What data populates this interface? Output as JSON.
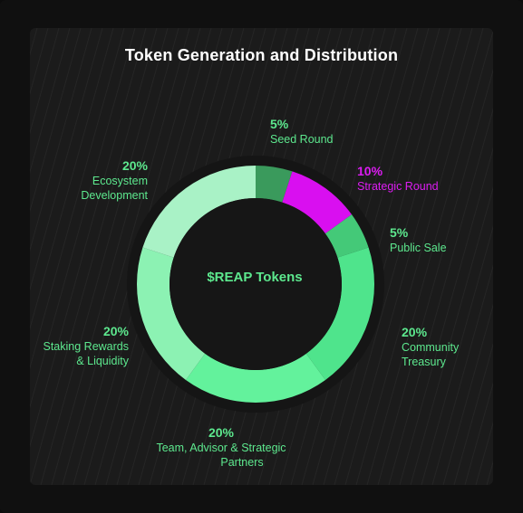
{
  "chart_data": {
    "type": "pie",
    "title": "Token Generation and Distribution",
    "center_label": "$REAP Tokens",
    "slices": [
      {
        "name_lines": [
          "Seed Round"
        ],
        "percent_label": "5%",
        "value": 5,
        "color": "#3a9a5c"
      },
      {
        "name_lines": [
          "Strategic Round"
        ],
        "percent_label": "10%",
        "value": 10,
        "color": "#d90ff0"
      },
      {
        "name_lines": [
          "Public Sale"
        ],
        "percent_label": "5%",
        "value": 5,
        "color": "#44c978"
      },
      {
        "name_lines": [
          "Community",
          "Treasury"
        ],
        "percent_label": "20%",
        "value": 20,
        "color": "#4fe48c"
      },
      {
        "name_lines": [
          "Team, Advisor & Strategic",
          "Partners"
        ],
        "percent_label": "20%",
        "value": 20,
        "color": "#63f29c"
      },
      {
        "name_lines": [
          "Staking Rewards",
          "& Liquidity"
        ],
        "percent_label": "20%",
        "value": 20,
        "color": "#8cf2b3"
      },
      {
        "name_lines": [
          "Ecosystem",
          "Development"
        ],
        "percent_label": "20%",
        "value": 20,
        "color": "#a9f2c6"
      }
    ]
  },
  "colors": {
    "background": "#101010",
    "panel": "#1b1b1b",
    "accent_green": "#5de88e",
    "accent_magenta": "#dc1cf2"
  }
}
